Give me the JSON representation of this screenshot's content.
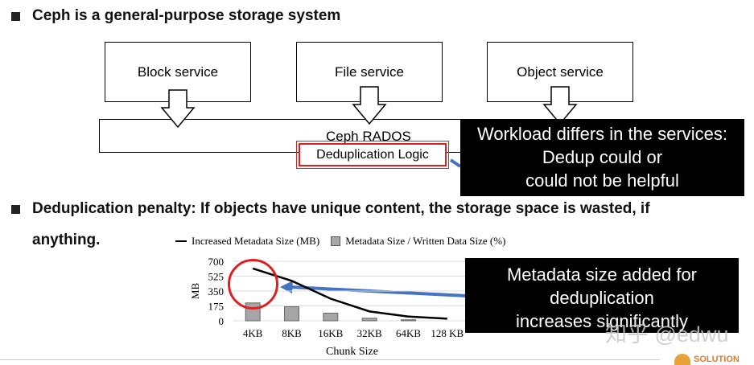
{
  "bullets": [
    "Ceph is a general-purpose storage system",
    "Deduplication penalty: If objects have unique content, the storage space is wasted, if",
    "anything."
  ],
  "diagram": {
    "services": [
      "Block service",
      "File service",
      "Object service"
    ],
    "rados": "Ceph RADOS",
    "dedup": "Deduplication Logic"
  },
  "callouts": {
    "workload": [
      "Workload differs in the services:",
      "Dedup could or",
      "could not be helpful"
    ],
    "metadata": [
      "Metadata size added for",
      "deduplication",
      "increases significantly"
    ]
  },
  "watermark": "知乎 @edwu",
  "logo": "SOLUTION",
  "colors": {
    "highlight": "#e02020",
    "arrow": "#4472c4",
    "bar": "#a6a6a6"
  },
  "chart_data": {
    "type": "bar+line",
    "categories": [
      "4KB",
      "8KB",
      "16KB",
      "32KB",
      "64KB",
      "128 KB"
    ],
    "xlabel": "Chunk Size",
    "ylabel": "MB",
    "ylim": [
      0,
      700
    ],
    "yticks": [
      "700",
      "525",
      "350",
      "175",
      "0"
    ],
    "grid": true,
    "legend": "top",
    "series": [
      {
        "name": "Increased Metadata Size (MB)",
        "type": "line",
        "values": [
          615,
          470,
          260,
          110,
          50,
          25
        ]
      },
      {
        "name": "Metadata Size / Written Data Size (%)",
        "type": "bar",
        "values": [
          210,
          165,
          90,
          30,
          12,
          null
        ]
      }
    ]
  }
}
